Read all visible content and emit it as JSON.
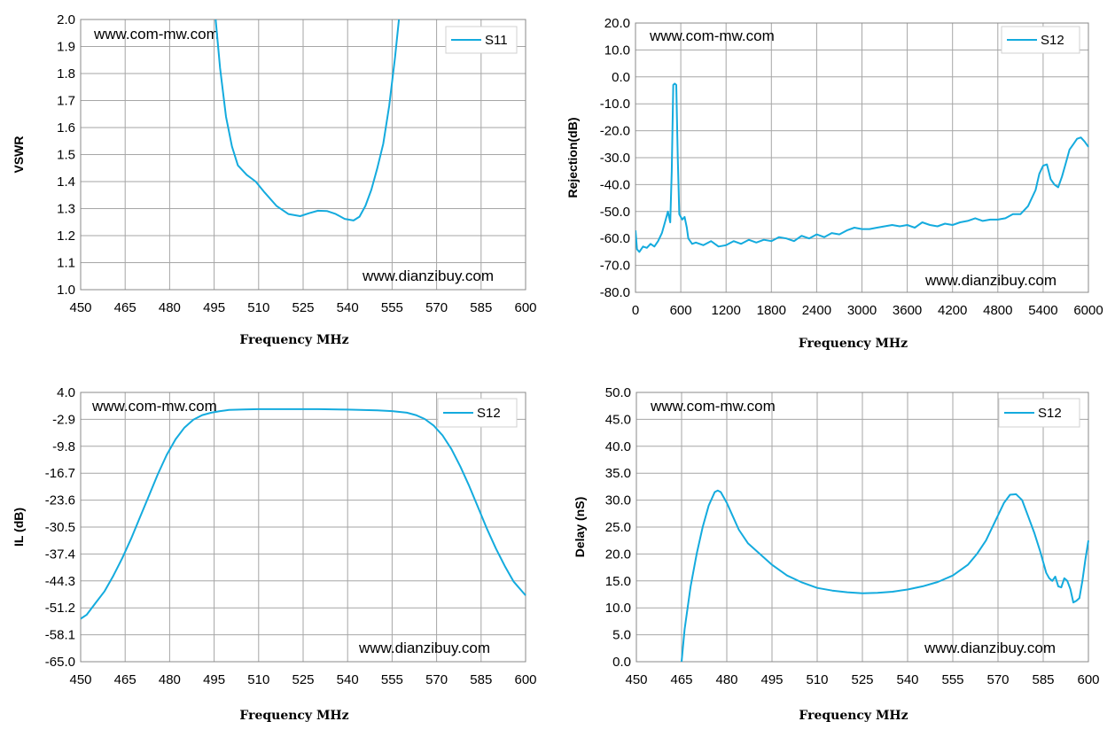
{
  "chart_data": [
    {
      "type": "line",
      "ylabel": "VSWR",
      "xlabel": "Frequency MHz",
      "watermark_top": "www.com-mw.com",
      "watermark_bottom": "www.dianzibuy.com",
      "legend": "top-right",
      "grid": true,
      "xlim": [
        450,
        600
      ],
      "ylim": [
        1.0,
        2.0
      ],
      "x_ticks": [
        "450",
        "465",
        "480",
        "495",
        "510",
        "525",
        "540",
        "555",
        "570",
        "585",
        "600"
      ],
      "y_ticks": [
        "2.0",
        "1.9",
        "1.8",
        "1.7",
        "1.6",
        "1.5",
        "1.4",
        "1.3",
        "1.2",
        "1.1",
        "1.0"
      ],
      "color": "#14abde",
      "series": [
        {
          "name": "S11",
          "x": [
            495.5,
            497,
            499,
            501,
            503,
            506,
            509,
            512,
            516,
            520,
            524,
            527,
            530,
            533,
            536,
            539,
            542,
            544,
            546,
            548,
            550,
            552,
            554,
            556,
            557.3
          ],
          "y": [
            2.0,
            1.82,
            1.64,
            1.53,
            1.46,
            1.425,
            1.4,
            1.36,
            1.31,
            1.28,
            1.272,
            1.283,
            1.292,
            1.291,
            1.28,
            1.262,
            1.256,
            1.27,
            1.31,
            1.37,
            1.45,
            1.54,
            1.68,
            1.86,
            2.0
          ]
        }
      ]
    },
    {
      "type": "line",
      "ylabel": "Rejection(dB)",
      "xlabel": "Frequency MHz",
      "watermark_top": "www.com-mw.com",
      "watermark_bottom": "www.dianzibuy.com",
      "legend": "top-right",
      "grid": true,
      "xlim": [
        0,
        6000
      ],
      "ylim": [
        -80,
        20
      ],
      "x_ticks": [
        "0",
        "600",
        "1200",
        "1800",
        "2400",
        "3000",
        "3600",
        "4200",
        "4800",
        "5400",
        "6000"
      ],
      "y_ticks": [
        "20.0",
        "10.0",
        "0.0",
        "-10.0",
        "-20.0",
        "-30.0",
        "-40.0",
        "-50.0",
        "-60.0",
        "-70.0",
        "-80.0"
      ],
      "color": "#14abde",
      "series": [
        {
          "name": "S12",
          "x": [
            0,
            20,
            50,
            100,
            150,
            200,
            250,
            300,
            350,
            400,
            430,
            460,
            480,
            500,
            520,
            540,
            560,
            580,
            600,
            620,
            650,
            680,
            700,
            750,
            800,
            900,
            1000,
            1100,
            1200,
            1300,
            1400,
            1500,
            1600,
            1700,
            1800,
            1900,
            2000,
            2100,
            2200,
            2300,
            2400,
            2500,
            2600,
            2700,
            2800,
            2900,
            3000,
            3100,
            3200,
            3300,
            3400,
            3500,
            3600,
            3700,
            3800,
            3900,
            4000,
            4100,
            4200,
            4300,
            4400,
            4500,
            4600,
            4700,
            4800,
            4900,
            5000,
            5100,
            5200,
            5300,
            5350,
            5400,
            5450,
            5500,
            5550,
            5600,
            5650,
            5700,
            5750,
            5800,
            5850,
            5900,
            5950,
            6000
          ],
          "y": [
            -57,
            -64,
            -65,
            -63,
            -63.5,
            -62,
            -63,
            -61,
            -58,
            -53,
            -50,
            -54,
            -35,
            -3,
            -2.5,
            -3,
            -30,
            -51,
            -52,
            -53,
            -52,
            -56,
            -60,
            -62,
            -61.5,
            -62.5,
            -61,
            -63,
            -62.5,
            -61,
            -62,
            -60.5,
            -61.5,
            -60.5,
            -61,
            -59.5,
            -60,
            -61,
            -59,
            -60,
            -58.5,
            -59.5,
            -58,
            -58.5,
            -57,
            -56,
            -56.5,
            -56.5,
            -56,
            -55.5,
            -55,
            -55.5,
            -55,
            -56,
            -54,
            -55,
            -55.5,
            -54.5,
            -55,
            -54,
            -53.5,
            -52.5,
            -53.5,
            -53,
            -53,
            -52.5,
            -51,
            -51,
            -48,
            -42,
            -36,
            -33,
            -32.5,
            -38,
            -40,
            -41,
            -37,
            -32,
            -27,
            -25,
            -23,
            -22.5,
            -24,
            -26
          ]
        }
      ]
    },
    {
      "type": "line",
      "ylabel": "IL (dB)",
      "xlabel": "Frequency MHz",
      "watermark_top": "www.com-mw.com",
      "watermark_bottom": "www.dianzibuy.com",
      "legend": "top-right",
      "grid": true,
      "xlim": [
        450,
        600
      ],
      "ylim": [
        -65.0,
        4.0
      ],
      "x_ticks": [
        "450",
        "465",
        "480",
        "495",
        "510",
        "525",
        "540",
        "555",
        "570",
        "585",
        "600"
      ],
      "y_ticks": [
        "4.0",
        "-2.9",
        "-9.8",
        "-16.7",
        "-23.6",
        "-30.5",
        "-37.4",
        "-44.3",
        "-51.2",
        "-58.1",
        "-65.0"
      ],
      "color": "#14abde",
      "series": [
        {
          "name": "S12",
          "x": [
            450,
            452,
            455,
            458,
            461,
            464,
            467,
            470,
            473,
            476,
            479,
            482,
            485,
            488,
            491,
            494,
            497,
            500,
            505,
            510,
            520,
            530,
            540,
            550,
            555,
            560,
            563,
            566,
            569,
            572,
            575,
            578,
            581,
            584,
            587,
            590,
            593,
            596,
            600
          ],
          "y": [
            -54,
            -53,
            -50,
            -47,
            -43,
            -38.5,
            -33.5,
            -28,
            -22.5,
            -17,
            -12,
            -8,
            -5,
            -3,
            -1.8,
            -1.2,
            -0.8,
            -0.5,
            -0.35,
            -0.3,
            -0.3,
            -0.3,
            -0.4,
            -0.6,
            -0.8,
            -1.2,
            -1.8,
            -2.8,
            -4.5,
            -7,
            -10.5,
            -15,
            -20,
            -25.5,
            -31,
            -36,
            -40.5,
            -44.5,
            -48
          ]
        }
      ]
    },
    {
      "type": "line",
      "ylabel": "Delay (nS)",
      "xlabel": "Frequency MHz",
      "watermark_top": "www.com-mw.com",
      "watermark_bottom": "www.dianzibuy.com",
      "legend": "top-right",
      "grid": true,
      "xlim": [
        450,
        600
      ],
      "ylim": [
        0,
        50
      ],
      "x_ticks": [
        "450",
        "465",
        "480",
        "495",
        "510",
        "525",
        "540",
        "555",
        "570",
        "585",
        "600"
      ],
      "y_ticks": [
        "50.0",
        "45.0",
        "40.0",
        "35.0",
        "30.0",
        "25.0",
        "20.0",
        "15.0",
        "10.0",
        "5.0",
        "0.0"
      ],
      "color": "#14abde",
      "series": [
        {
          "name": "S12",
          "x": [
            465,
            466,
            468,
            470,
            472,
            474,
            476,
            477,
            478,
            480,
            482,
            484,
            487,
            490,
            495,
            500,
            505,
            510,
            515,
            520,
            525,
            530,
            535,
            540,
            545,
            550,
            555,
            560,
            563,
            566,
            569,
            572,
            574,
            576,
            578,
            580,
            582,
            584,
            585,
            586,
            587,
            588,
            589,
            590,
            591,
            592,
            593,
            594,
            595,
            596,
            597,
            598,
            599,
            600
          ],
          "y": [
            0,
            6,
            14,
            20,
            25,
            29,
            31.5,
            31.8,
            31.5,
            29.5,
            27,
            24.5,
            22,
            20.5,
            18,
            16,
            14.7,
            13.7,
            13.2,
            12.9,
            12.7,
            12.8,
            13,
            13.4,
            14,
            14.8,
            16,
            18,
            20,
            22.5,
            26,
            29.5,
            31,
            31.1,
            30,
            27,
            24,
            20.5,
            18.5,
            16.5,
            15.5,
            15,
            15.8,
            14,
            13.8,
            15.5,
            15,
            13.5,
            11,
            11.3,
            11.8,
            15,
            19,
            22.5
          ]
        }
      ]
    }
  ]
}
